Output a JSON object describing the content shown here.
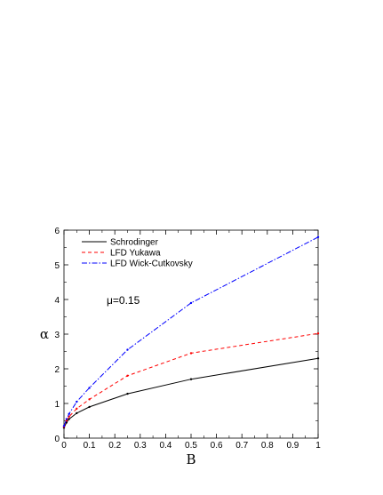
{
  "chart_data": {
    "type": "line",
    "xlabel": "B",
    "ylabel": "α",
    "xlim": [
      0,
      1
    ],
    "ylim": [
      0,
      6
    ],
    "x_ticks": [
      "0",
      "0.1",
      "0.2",
      "0.3",
      "0.4",
      "0.5",
      "0.6",
      "0.7",
      "0.8",
      "0.9",
      "1"
    ],
    "y_ticks": [
      "0",
      "1",
      "2",
      "3",
      "4",
      "5",
      "6"
    ],
    "annotation": "μ=0.15",
    "legend_position": "top-left",
    "grid": false,
    "series": [
      {
        "name": "Schrodinger",
        "color": "#000000",
        "style": "solid",
        "x": [
          0.0,
          0.01,
          0.02,
          0.05,
          0.1,
          0.25,
          0.5,
          1.0
        ],
        "y": [
          0.3,
          0.45,
          0.55,
          0.72,
          0.9,
          1.28,
          1.7,
          2.3
        ]
      },
      {
        "name": "LFD Yukawa",
        "color": "#ff0000",
        "style": "dashed",
        "x": [
          0.0,
          0.01,
          0.02,
          0.05,
          0.1,
          0.25,
          0.5,
          1.0
        ],
        "y": [
          0.33,
          0.5,
          0.62,
          0.85,
          1.12,
          1.8,
          2.45,
          3.02
        ]
      },
      {
        "name": "LFD Wick-Cutkovsky",
        "color": "#0000ff",
        "style": "dashdot",
        "x": [
          0.0,
          0.01,
          0.02,
          0.05,
          0.1,
          0.25,
          0.5,
          1.0
        ],
        "y": [
          0.35,
          0.55,
          0.7,
          1.05,
          1.45,
          2.55,
          3.9,
          5.8
        ]
      }
    ]
  }
}
